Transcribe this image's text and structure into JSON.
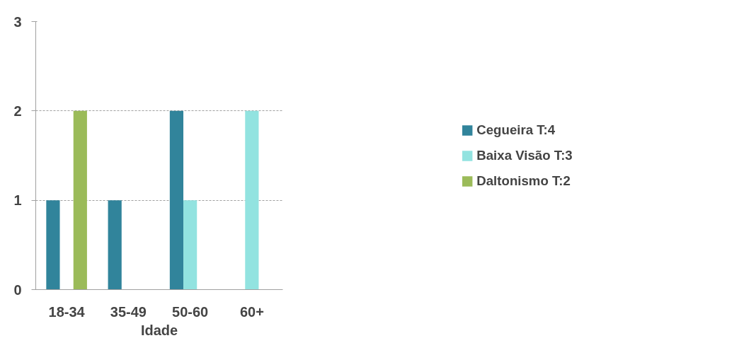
{
  "chart_data": {
    "type": "bar",
    "xlabel": "Idade",
    "categories": [
      "18-34",
      "35-49",
      "50-60",
      "60+"
    ],
    "series": [
      {
        "name": "Cegueira T:4",
        "color": "#31849b",
        "values": [
          1,
          1,
          2,
          0
        ]
      },
      {
        "name": "Baixa Visão T:3",
        "color": "#92e3e0",
        "values": [
          0,
          0,
          1,
          2
        ]
      },
      {
        "name": "Daltonismo T:2",
        "color": "#9bbb59",
        "values": [
          2,
          0,
          0,
          0
        ]
      }
    ],
    "ylim": [
      0,
      3
    ],
    "yticks": [
      0,
      1,
      2,
      3
    ],
    "grid": "y",
    "legend": "right"
  }
}
